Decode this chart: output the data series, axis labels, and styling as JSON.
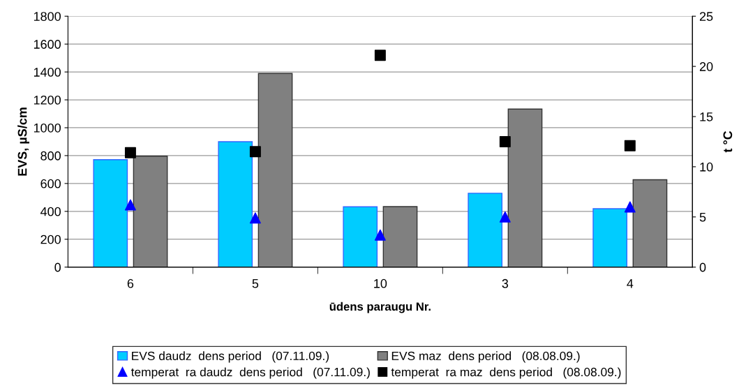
{
  "chart_data": {
    "type": "bar",
    "xlabel": "ūdens paraugu Nr.",
    "ylabel": "EVS, µS/cm",
    "y2label": "t °C",
    "categories": [
      "6",
      "5",
      "10",
      "3",
      "4"
    ],
    "series": [
      {
        "name": "EVS daudz  dens period   (07.11.09.)",
        "color": "#00ccff",
        "values": [
          771,
          900,
          433,
          530,
          419
        ]
      },
      {
        "name": "EVS maz  dens period   (08.08.09.)",
        "color": "#808080",
        "values": [
          796,
          1389,
          434,
          1134,
          627
        ]
      },
      {
        "name": "temperat  ra daudz  dens period   (07.11.09.)",
        "type": "scatter",
        "axis": "y2",
        "marker": "triangle",
        "color": "#0000ff",
        "values": [
          6.2,
          4.9,
          3.2,
          5.0,
          6.0
        ]
      },
      {
        "name": "temperat  ra maz  dens period   (08.08.09.)",
        "type": "scatter",
        "axis": "y2",
        "marker": "square",
        "color": "#000000",
        "values": [
          11.4,
          11.5,
          21.1,
          12.5,
          12.1
        ]
      }
    ],
    "ylim": [
      0,
      1800
    ],
    "yticks": [
      0,
      200,
      400,
      600,
      800,
      1000,
      1200,
      1400,
      1600,
      1800
    ],
    "y2lim": [
      0,
      25
    ],
    "y2ticks": [
      0,
      5,
      10,
      15,
      20,
      25
    ],
    "grid": "y",
    "legend": "bottom"
  }
}
